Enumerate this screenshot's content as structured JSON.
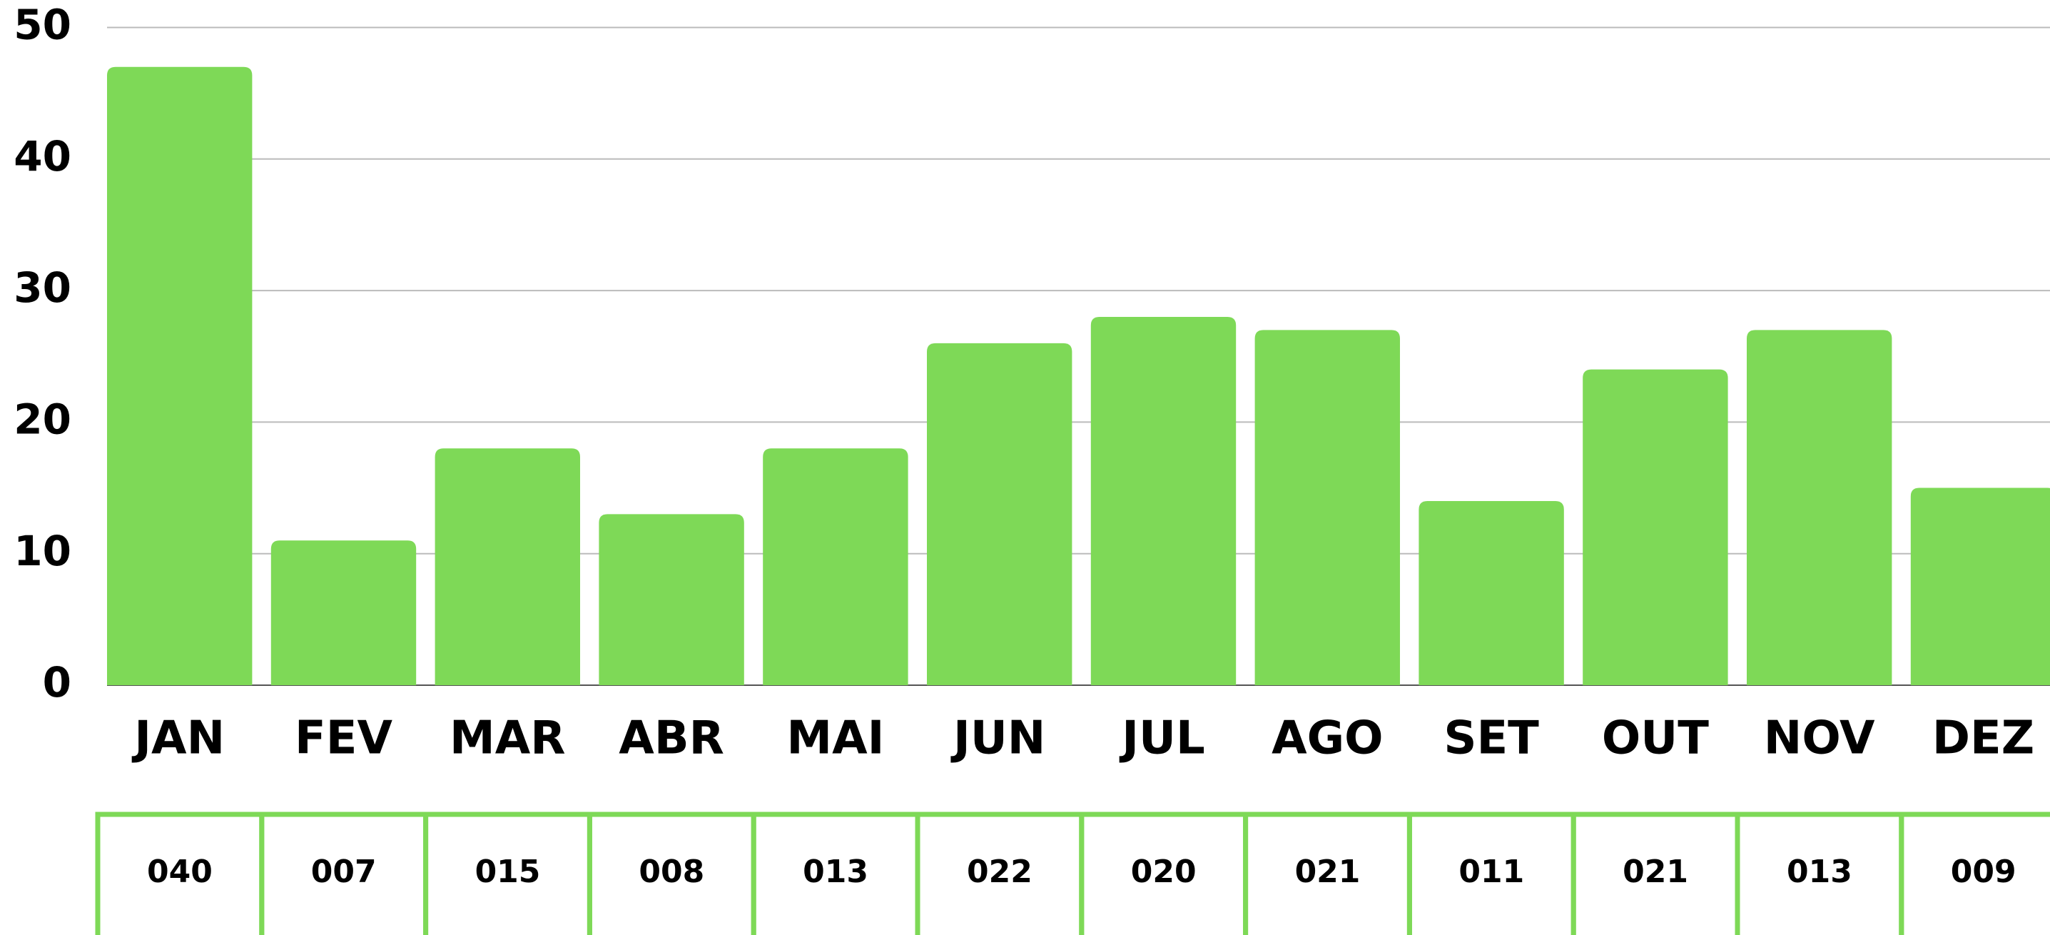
{
  "chart_data": {
    "type": "bar",
    "categories": [
      "JAN",
      "FEV",
      "MAR",
      "ABR",
      "MAI",
      "JUN",
      "JUL",
      "AGO",
      "SET",
      "OUT",
      "NOV",
      "DEZ"
    ],
    "values": [
      47,
      11,
      18,
      13,
      18,
      26,
      28,
      27,
      14,
      24,
      27,
      15
    ],
    "color": "#7ed957",
    "ylim": [
      0,
      50
    ],
    "yticks": [
      0,
      10,
      20,
      30,
      40,
      50
    ],
    "grid": true,
    "table": [
      "040",
      "007",
      "015",
      "008",
      "013",
      "022",
      "020",
      "021",
      "011",
      "021",
      "013",
      "009"
    ]
  }
}
